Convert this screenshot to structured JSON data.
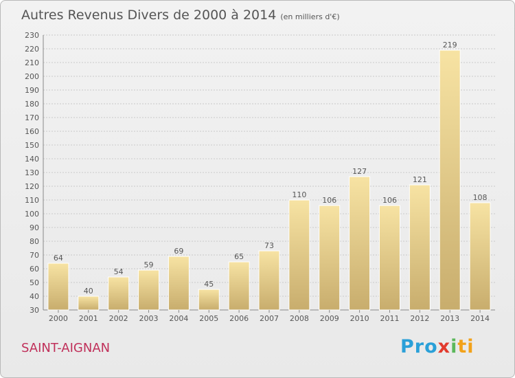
{
  "title": "Autres Revenus Divers de 2000 à 2014",
  "subtitle": "(en milliers d'€)",
  "place": "SAINT-AIGNAN",
  "logo": {
    "p1": "Pro",
    "p2": "x",
    "p3": "i",
    "p4": "ti"
  },
  "colors": {
    "bar_light": "#f7e3a3",
    "bar_dark": "#c8ad6d",
    "grid": "#c9c9c9",
    "text": "#555555",
    "place": "#c0305a"
  },
  "chart_data": {
    "type": "bar",
    "categories": [
      "2000",
      "2001",
      "2002",
      "2003",
      "2004",
      "2005",
      "2006",
      "2007",
      "2008",
      "2009",
      "2010",
      "2011",
      "2012",
      "2013",
      "2014"
    ],
    "values": [
      64,
      40,
      54,
      59,
      69,
      45,
      65,
      73,
      110,
      106,
      127,
      106,
      121,
      219,
      108
    ],
    "ylim": [
      30,
      230
    ],
    "yticks": [
      30,
      40,
      50,
      60,
      70,
      80,
      90,
      100,
      110,
      120,
      130,
      140,
      150,
      160,
      170,
      180,
      190,
      200,
      210,
      220,
      230
    ],
    "grid": true,
    "data_labels": true
  }
}
